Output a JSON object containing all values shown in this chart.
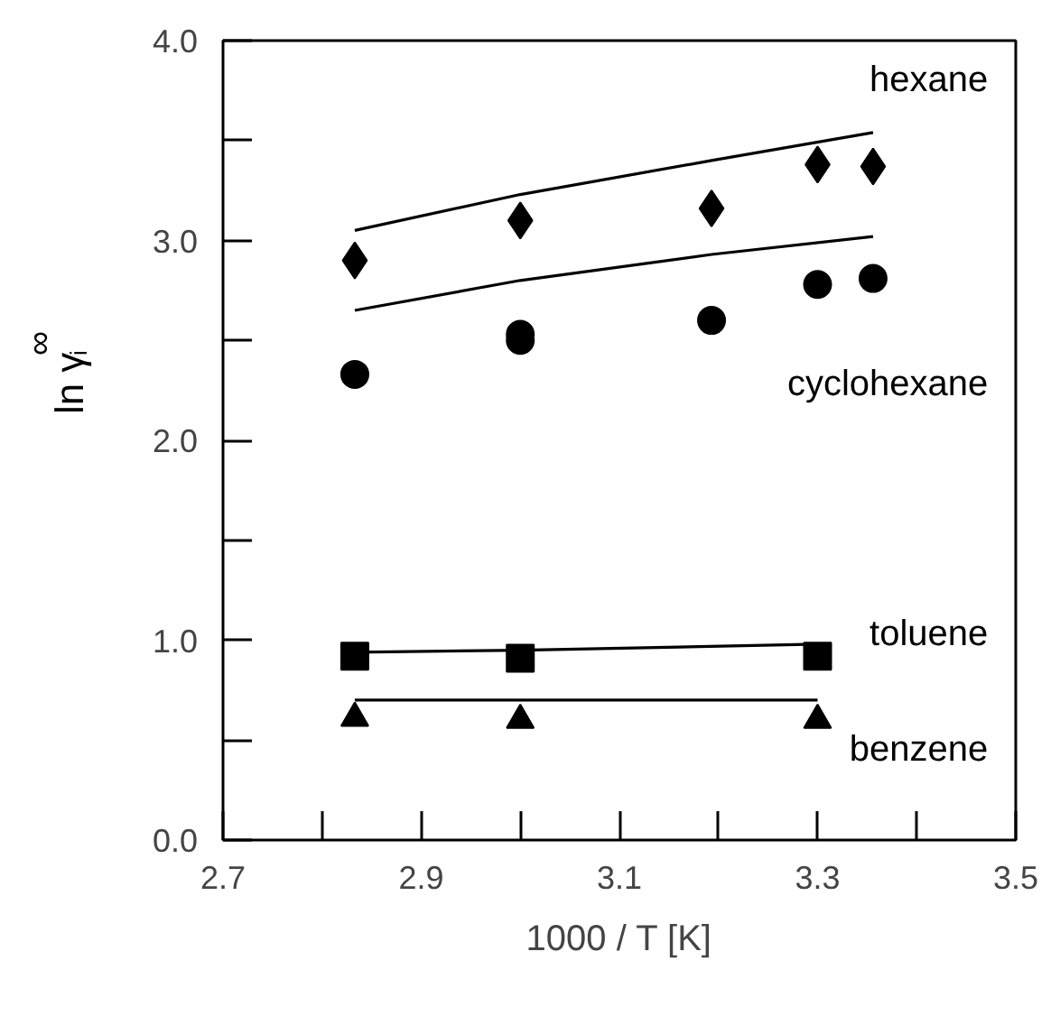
{
  "chart_data": {
    "type": "scatter",
    "xlabel": "1000 / T [K]",
    "ylabel": "ln γ$_{i}$$^{∞}$",
    "xlim": [
      2.7,
      3.5
    ],
    "ylim": [
      0.0,
      4.0
    ],
    "xticks": [
      {
        "value": 2.7,
        "label": "2.7"
      },
      {
        "value": 2.8,
        "label": null
      },
      {
        "value": 2.9,
        "label": "2.9"
      },
      {
        "value": 3.0,
        "label": null
      },
      {
        "value": 3.1,
        "label": "3.1"
      },
      {
        "value": 3.2,
        "label": null
      },
      {
        "value": 3.3,
        "label": "3.3"
      },
      {
        "value": 3.4,
        "label": null
      },
      {
        "value": 3.5,
        "label": "3.5"
      }
    ],
    "yticks": [
      {
        "value": 0,
        "label": "0.0"
      },
      {
        "value": 0.5,
        "label": null
      },
      {
        "value": 1,
        "label": "1.0"
      },
      {
        "value": 1.5,
        "label": null
      },
      {
        "value": 2,
        "label": "2.0"
      },
      {
        "value": 2.5,
        "label": null
      },
      {
        "value": 3,
        "label": "3.0"
      },
      {
        "value": 3.5,
        "label": null
      },
      {
        "value": 4,
        "label": "4.0"
      }
    ],
    "grid": false,
    "series": [
      {
        "marker": "diamond",
        "color": "#000000",
        "x": [
          2.833,
          3.0,
          3.193,
          3.3,
          3.356
        ],
        "values": [
          2.9,
          3.1,
          3.16,
          3.38,
          3.37
        ]
      },
      {
        "marker": "circle",
        "color": "#000000",
        "x": [
          2.833,
          3.0,
          3.0,
          3.193,
          3.3,
          3.356
        ],
        "values": [
          2.33,
          2.53,
          2.5,
          2.6,
          2.78,
          2.81
        ]
      },
      {
        "marker": "square",
        "color": "#000000",
        "x": [
          2.833,
          3.0,
          3.3
        ],
        "values": [
          0.92,
          0.91,
          0.92
        ]
      },
      {
        "marker": "triangle",
        "color": "#000000",
        "x": [
          2.833,
          3.0,
          3.3
        ],
        "values": [
          0.61,
          0.6,
          0.6
        ]
      },
      {
        "type": "line",
        "color": "#000000",
        "x": [
          2.833,
          3.0,
          3.193,
          3.356
        ],
        "values": [
          3.05,
          3.23,
          3.4,
          3.54
        ]
      },
      {
        "type": "line",
        "color": "#000000",
        "x": [
          2.833,
          3.0,
          3.193,
          3.356
        ],
        "values": [
          2.65,
          2.8,
          2.93,
          3.02
        ]
      },
      {
        "type": "line",
        "color": "#000000",
        "x": [
          2.833,
          3.0,
          3.3
        ],
        "values": [
          0.94,
          0.95,
          0.98
        ]
      },
      {
        "type": "line",
        "color": "#000000",
        "x": [
          2.833,
          3.0,
          3.3
        ],
        "values": [
          0.7,
          0.7,
          0.7
        ]
      }
    ],
    "annotations": [
      "hexane",
      "cyclohexane",
      "toluene",
      "benzene"
    ]
  }
}
